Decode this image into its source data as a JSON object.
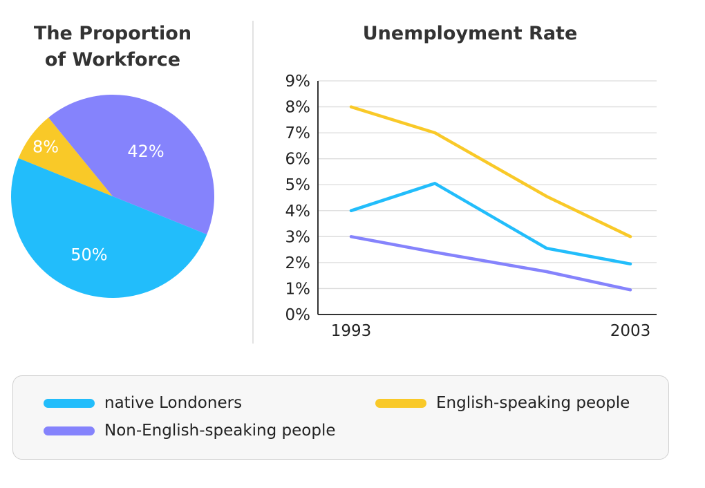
{
  "chart_data": [
    {
      "type": "pie",
      "title": "The Proportion of Workforce",
      "title_lines": [
        "The Proportion",
        "of Workforce"
      ],
      "slices": [
        {
          "series": "English-speaking people",
          "label": "8%",
          "value": 8,
          "color": "#f9c928"
        },
        {
          "series": "Non-English-speaking people",
          "label": "42%",
          "value": 42,
          "color": "#8583fc"
        },
        {
          "series": "native Londoners",
          "label": "50%",
          "value": 50,
          "color": "#22bdfb"
        }
      ]
    },
    {
      "type": "line",
      "title": "Unemployment Rate",
      "x": [
        1993,
        1996,
        2000,
        2003
      ],
      "x_tick_labels": [
        "1993",
        "2003"
      ],
      "xlim": [
        1993,
        2003
      ],
      "ylim": [
        0,
        9
      ],
      "y_ticks": [
        0,
        1,
        2,
        3,
        4,
        5,
        6,
        7,
        8,
        9
      ],
      "y_tick_labels": [
        "0%",
        "1%",
        "2%",
        "3%",
        "4%",
        "5%",
        "6%",
        "7%",
        "8%",
        "9%"
      ],
      "grid": true,
      "series": [
        {
          "name": "native Londoners",
          "color": "#22bdfb",
          "values": [
            4.0,
            5.05,
            2.55,
            1.95
          ]
        },
        {
          "name": "English-speaking people",
          "color": "#f9c928",
          "values": [
            8.0,
            7.0,
            4.55,
            3.0
          ]
        },
        {
          "name": "Non-English-speaking people",
          "color": "#8583fc",
          "values": [
            3.0,
            2.4,
            1.65,
            0.95
          ]
        }
      ]
    }
  ],
  "legend": {
    "placement": "bottom",
    "items": [
      {
        "label": "native Londoners",
        "color": "#22bdfb"
      },
      {
        "label": "English-speaking people",
        "color": "#f9c928"
      },
      {
        "label": "Non-English-speaking people",
        "color": "#8583fc"
      }
    ]
  }
}
